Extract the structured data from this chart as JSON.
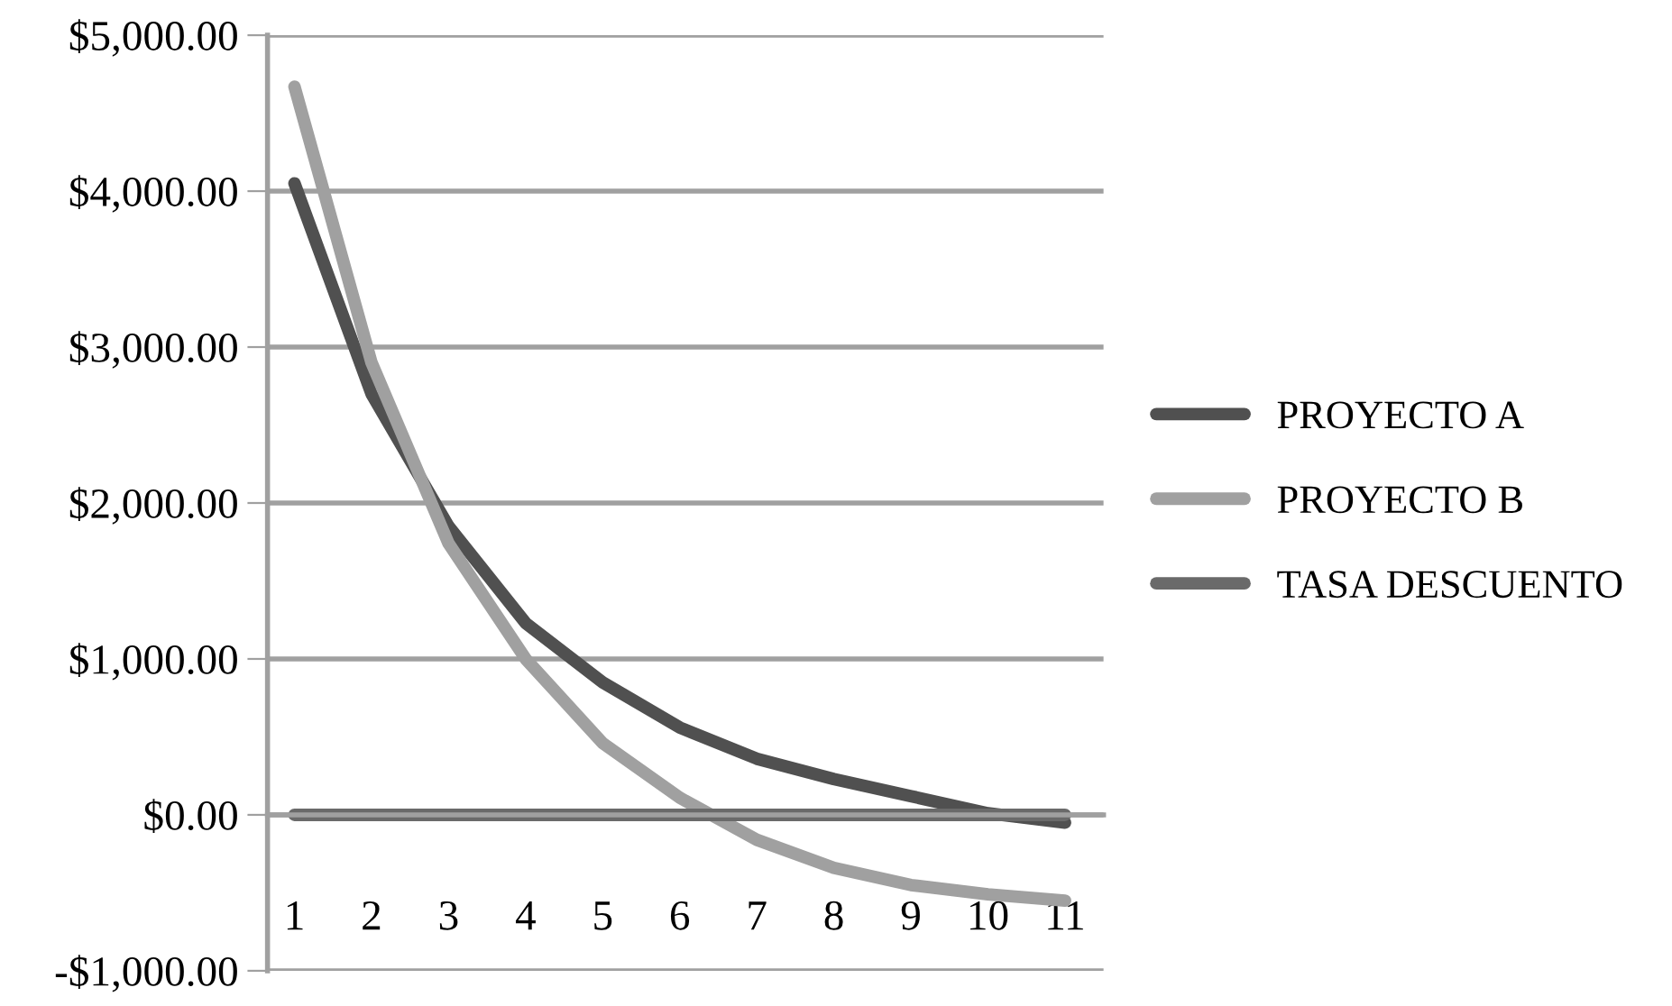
{
  "chart_data": {
    "type": "line",
    "categories": [
      "1",
      "2",
      "3",
      "4",
      "5",
      "6",
      "7",
      "8",
      "9",
      "10",
      "11"
    ],
    "series": [
      {
        "name": "PROYECTO A",
        "color": "#505050",
        "values": [
          4050,
          2700,
          1850,
          1230,
          850,
          560,
          360,
          230,
          120,
          10,
          -50
        ]
      },
      {
        "name": "PROYECTO B",
        "color": "#a0a0a0",
        "values": [
          4670,
          2900,
          1740,
          1000,
          460,
          110,
          -160,
          -340,
          -450,
          -510,
          -550
        ]
      },
      {
        "name": "TASA DESCUENTO",
        "color": "#6a6a6a",
        "values": [
          0,
          0,
          0,
          0,
          0,
          0,
          0,
          0,
          0,
          0,
          0
        ]
      }
    ],
    "ylim": [
      -1000,
      5000
    ],
    "yticks": [
      {
        "value": -1000,
        "label": "-$1,000.00"
      },
      {
        "value": 0,
        "label": "$0.00"
      },
      {
        "value": 1000,
        "label": "$1,000.00"
      },
      {
        "value": 2000,
        "label": "$2,000.00"
      },
      {
        "value": 3000,
        "label": "$3,000.00"
      },
      {
        "value": 4000,
        "label": "$4,000.00"
      },
      {
        "value": 5000,
        "label": "$5,000.00"
      }
    ],
    "grid": "y",
    "legend": "right",
    "marker": "none",
    "line_style": "solid"
  }
}
